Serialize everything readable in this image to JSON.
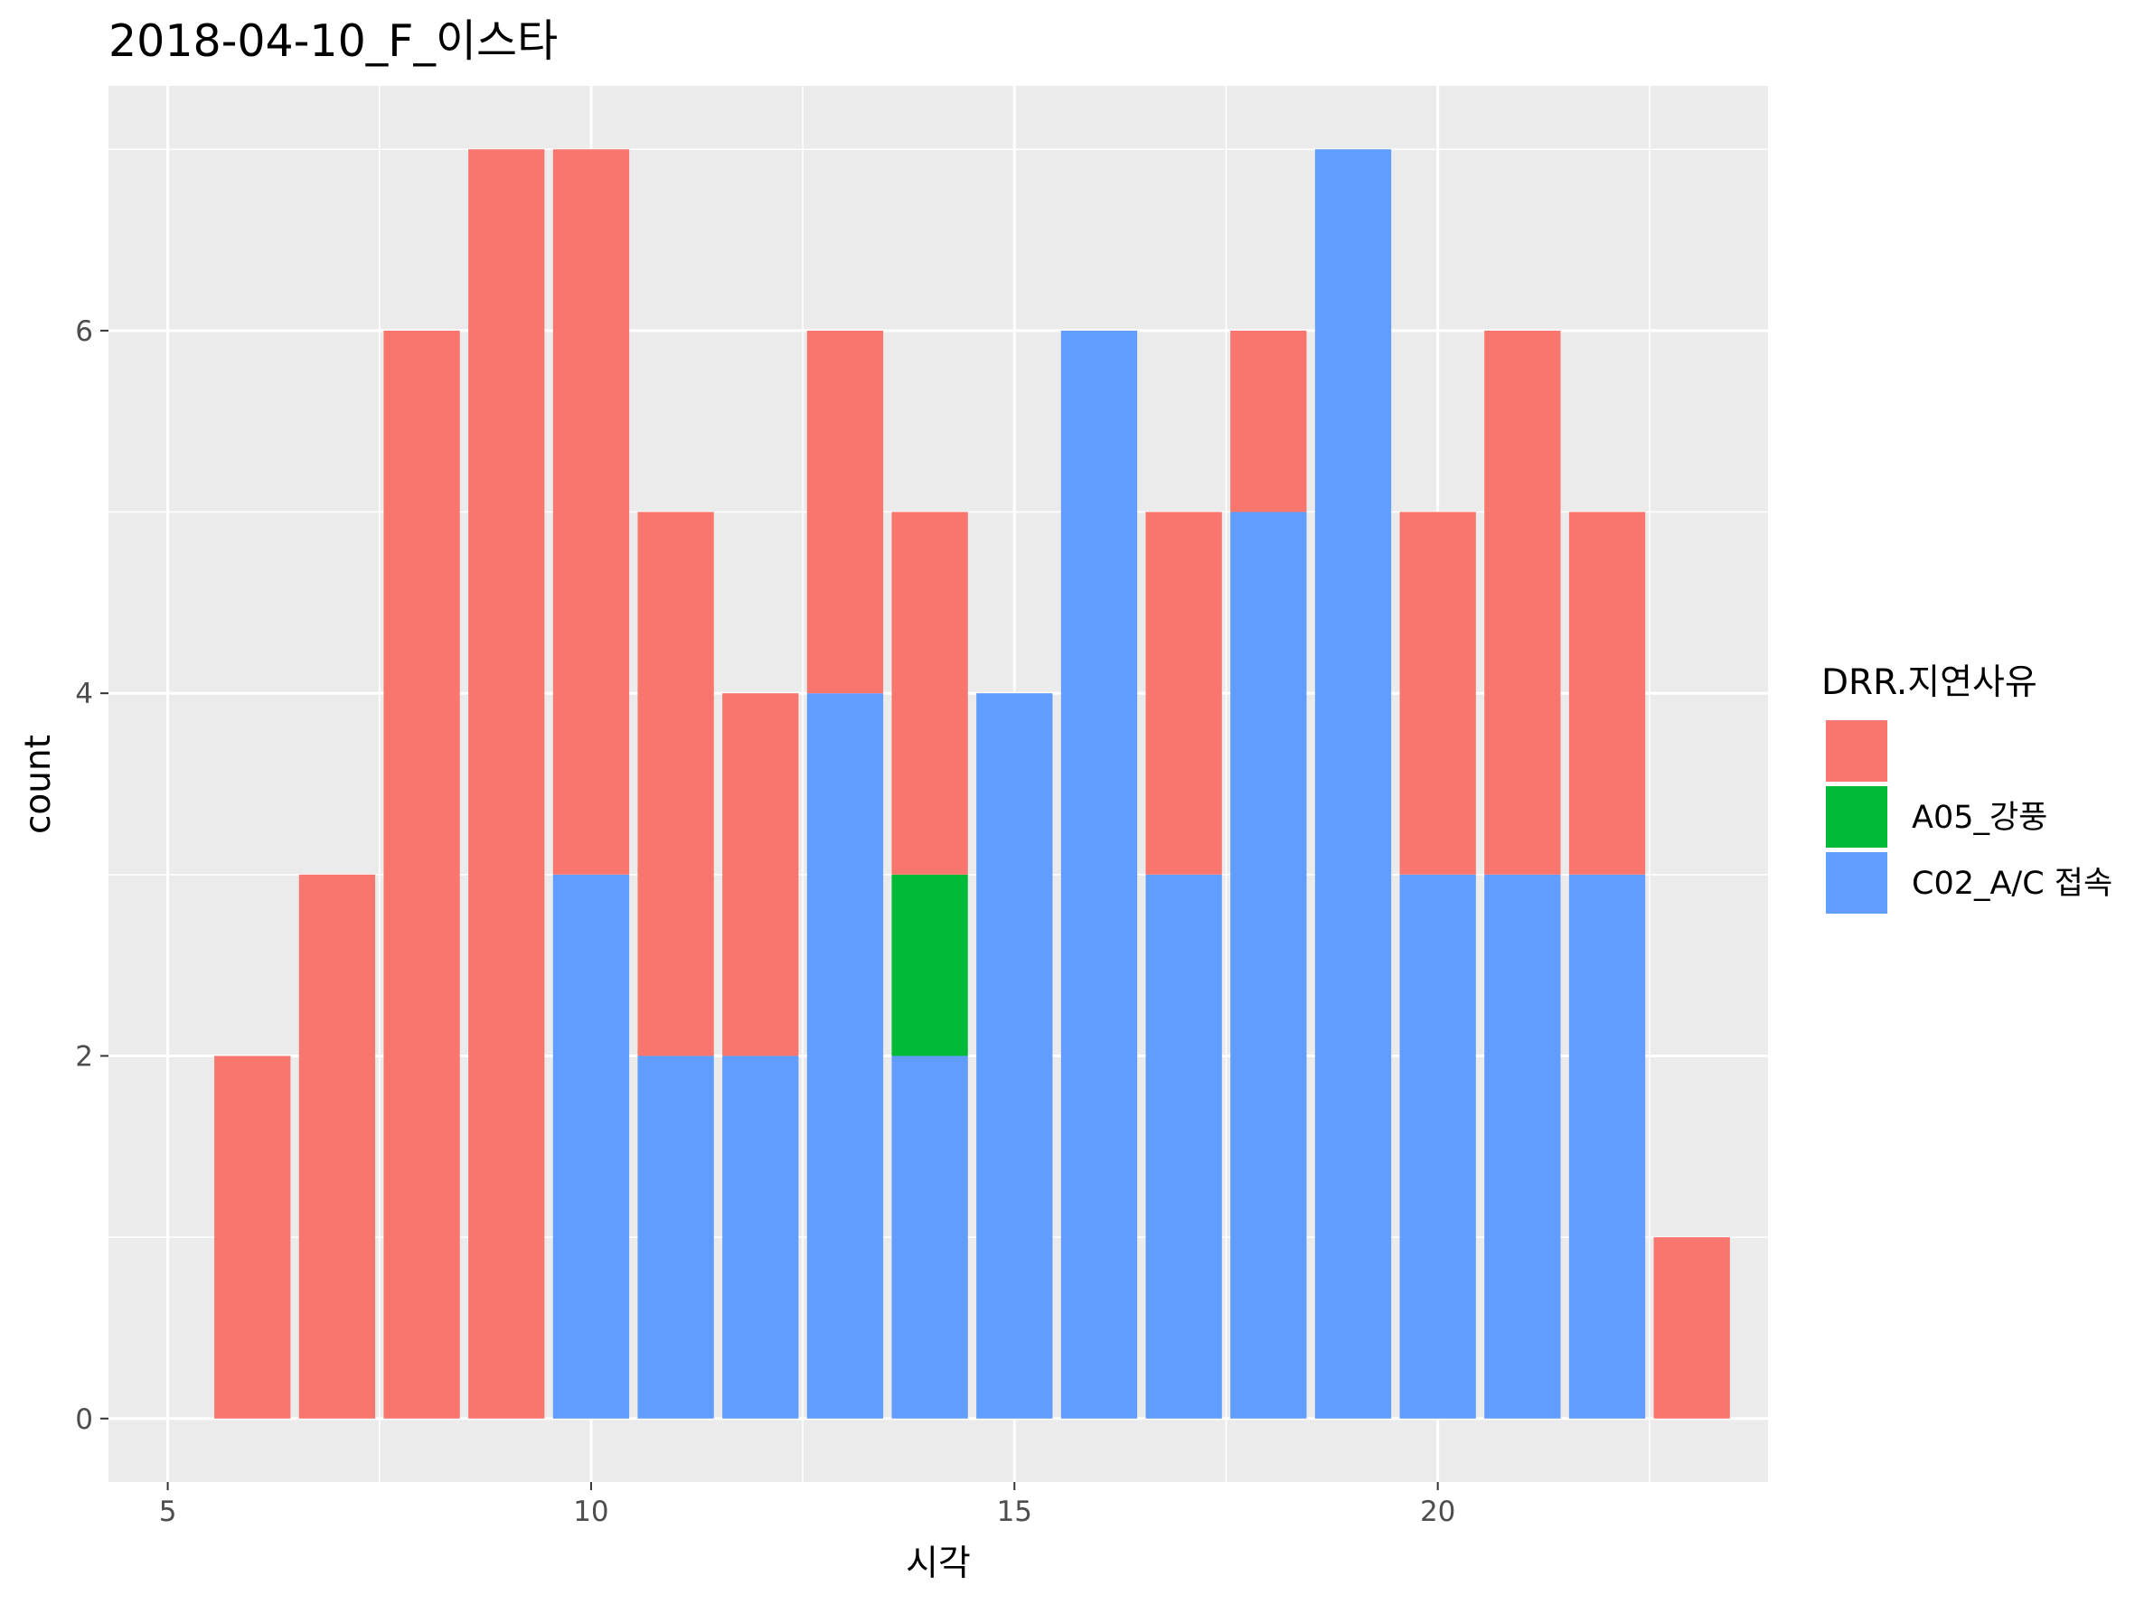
{
  "chart_data": {
    "type": "bar",
    "stacked": true,
    "title": "2018-04-10_F_이스타",
    "xlabel": "시각",
    "ylabel": "count",
    "xlim": [
      4.3,
      23.9
    ],
    "ylim": [
      -0.35,
      7.35
    ],
    "x_ticks": [
      5,
      10,
      15,
      20
    ],
    "y_ticks": [
      0,
      2,
      4,
      6
    ],
    "x_tick_labels": [
      "5",
      "10",
      "15",
      "20"
    ],
    "y_tick_labels": [
      "0",
      "2",
      "4",
      "6"
    ],
    "grid": true,
    "legend": {
      "title": "DRR.지연사유",
      "position": "right",
      "entries": [
        {
          "label": "",
          "color": "#F8766D"
        },
        {
          "label": "A05_강풍",
          "color": "#00BA38"
        },
        {
          "label": "C02_A/C 접속",
          "color": "#619CFF"
        }
      ]
    },
    "x": [
      6,
      7,
      8,
      9,
      10,
      11,
      12,
      13,
      14,
      15,
      16,
      17,
      18,
      19,
      20,
      21,
      22,
      23
    ],
    "series": [
      {
        "name": "C02_A/C 접속",
        "color": "#619CFF",
        "values": [
          0,
          0,
          0,
          0,
          3,
          2,
          2,
          4,
          2,
          4,
          6,
          3,
          5,
          7,
          3,
          3,
          3,
          0
        ]
      },
      {
        "name": "A05_강풍",
        "color": "#00BA38",
        "values": [
          0,
          0,
          0,
          0,
          0,
          0,
          0,
          0,
          1,
          0,
          0,
          0,
          0,
          0,
          0,
          0,
          0,
          0
        ]
      },
      {
        "name": "",
        "color": "#F8766D",
        "values": [
          2,
          3,
          6,
          7,
          4,
          3,
          2,
          2,
          2,
          0,
          0,
          2,
          1,
          0,
          2,
          3,
          2,
          1
        ]
      }
    ],
    "panel_background": "#EBEBEB",
    "grid_color": "#FFFFFF"
  }
}
